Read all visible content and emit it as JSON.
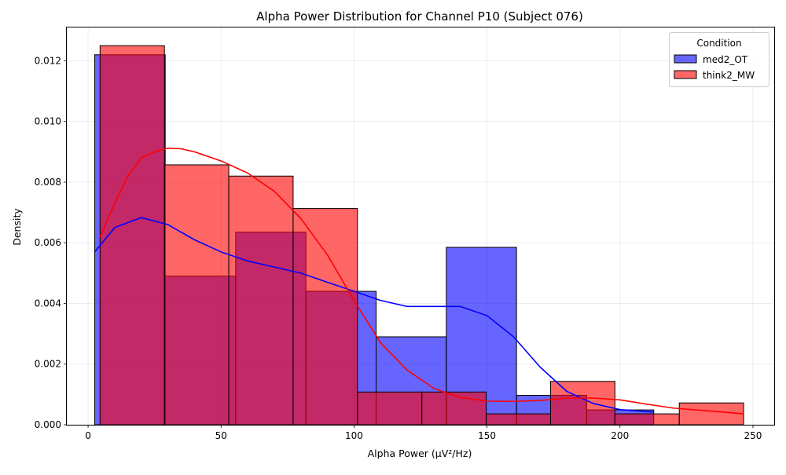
{
  "chart_data": {
    "type": "histogram",
    "title": "Alpha Power Distribution for Channel P10 (Subject 076)",
    "xlabel": "Alpha Power (µV²/Hz)",
    "ylabel": "Density",
    "xlim": [
      -8,
      258
    ],
    "ylim": [
      0,
      0.0131
    ],
    "xticks": [
      0,
      50,
      100,
      150,
      200,
      250
    ],
    "yticks": [
      0.0,
      0.002,
      0.004,
      0.006,
      0.008,
      0.01,
      0.012
    ],
    "ytick_labels": [
      "0.000",
      "0.002",
      "0.004",
      "0.006",
      "0.008",
      "0.010",
      "0.012"
    ],
    "grid": true,
    "legend": {
      "title": "Condition",
      "placement": "top-right"
    },
    "series": [
      {
        "name": "med2_OT",
        "color": "#0000ff",
        "bins": [
          {
            "x0": 2.5,
            "x1": 29.0,
            "density": 0.0122
          },
          {
            "x0": 29.0,
            "x1": 55.5,
            "density": 0.0049
          },
          {
            "x0": 55.5,
            "x1": 81.9,
            "density": 0.00635
          },
          {
            "x0": 81.9,
            "x1": 108.3,
            "density": 0.0044
          },
          {
            "x0": 108.3,
            "x1": 134.7,
            "density": 0.0029
          },
          {
            "x0": 134.7,
            "x1": 161.1,
            "density": 0.00585
          },
          {
            "x0": 161.1,
            "x1": 187.5,
            "density": 0.00097
          },
          {
            "x0": 187.5,
            "x1": 212.7,
            "density": 0.00049
          }
        ],
        "kde": {
          "x": [
            2.5,
            10,
            20,
            30,
            40,
            50,
            60,
            70,
            80,
            90,
            100,
            110,
            120,
            130,
            140,
            150,
            160,
            170,
            180,
            190,
            200,
            212.7
          ],
          "y": [
            0.0057,
            0.0065,
            0.00683,
            0.0066,
            0.0061,
            0.0057,
            0.0054,
            0.0052,
            0.005,
            0.0047,
            0.0044,
            0.0041,
            0.0039,
            0.0039,
            0.0039,
            0.0036,
            0.0029,
            0.0019,
            0.0011,
            0.0007,
            0.0005,
            0.00042
          ]
        }
      },
      {
        "name": "think2_MW",
        "color": "#ff0000",
        "bins": [
          {
            "x0": 4.5,
            "x1": 28.7,
            "density": 0.0125
          },
          {
            "x0": 28.7,
            "x1": 52.9,
            "density": 0.00857
          },
          {
            "x0": 52.9,
            "x1": 77.1,
            "density": 0.0082
          },
          {
            "x0": 77.1,
            "x1": 101.3,
            "density": 0.00713
          },
          {
            "x0": 101.3,
            "x1": 125.5,
            "density": 0.00108
          },
          {
            "x0": 125.5,
            "x1": 149.7,
            "density": 0.00108
          },
          {
            "x0": 149.7,
            "x1": 173.9,
            "density": 0.00036
          },
          {
            "x0": 173.9,
            "x1": 198.1,
            "density": 0.00143
          },
          {
            "x0": 198.1,
            "x1": 222.3,
            "density": 0.00036
          },
          {
            "x0": 222.3,
            "x1": 246.5,
            "density": 0.00072
          }
        ],
        "kde": {
          "x": [
            4.5,
            10,
            15,
            20,
            25,
            30,
            35,
            40,
            50,
            60,
            70,
            80,
            90,
            100,
            110,
            120,
            130,
            140,
            150,
            160,
            170,
            180,
            190,
            200,
            210,
            220,
            230,
            246.5
          ],
          "y": [
            0.0062,
            0.0073,
            0.0082,
            0.0088,
            0.009,
            0.00912,
            0.0091,
            0.009,
            0.0087,
            0.0083,
            0.0077,
            0.0068,
            0.0056,
            0.0041,
            0.0027,
            0.0018,
            0.0012,
            0.0009,
            0.00078,
            0.00077,
            0.0008,
            0.00088,
            0.00088,
            0.00082,
            0.00068,
            0.00055,
            0.00048,
            0.00036
          ]
        }
      }
    ]
  }
}
